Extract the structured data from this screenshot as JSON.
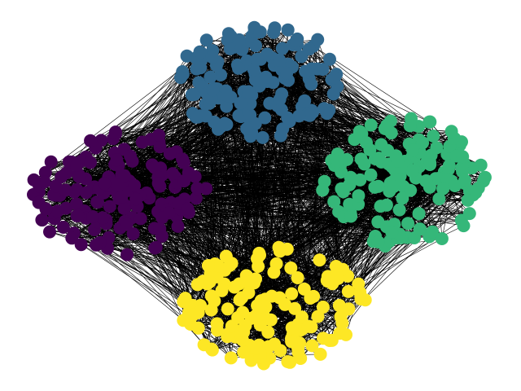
{
  "graph": {
    "type": "network",
    "edge_color": "#000000",
    "background": "#ffffff",
    "communities": [
      {
        "id": "community-blue",
        "color": "#31688e",
        "node_count": 150
      },
      {
        "id": "community-green",
        "color": "#35b779",
        "node_count": 150
      },
      {
        "id": "community-yellow",
        "color": "#fde725",
        "node_count": 150
      },
      {
        "id": "community-purple",
        "color": "#440154",
        "node_count": 150
      }
    ]
  }
}
